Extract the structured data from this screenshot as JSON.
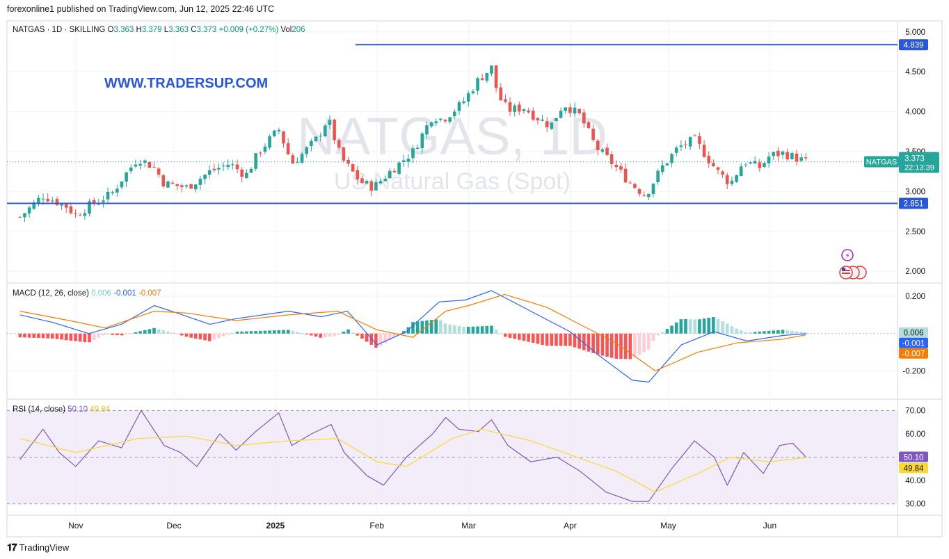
{
  "header": "forexonline1 published on TradingView.com, Jun 12, 2025 22:46 UTC",
  "footer": {
    "brand": "TradingView"
  },
  "watermark": {
    "domain": "WWW.TRADERSUP.COM",
    "symbol": "NATGAS, 1D",
    "name": "US Natural Gas (Spot)"
  },
  "chart_data": [
    {
      "type": "candlestick",
      "title": "NATGAS · 1D · SKILLING",
      "ohlc_legend": {
        "O": "3.363",
        "H": "3.379",
        "L": "3.363",
        "C": "3.373",
        "change": "+0.009 (+0.27%)",
        "Vol": "206"
      },
      "y_ticks": [
        "5.000",
        "4.500",
        "4.000",
        "3.500",
        "3.000",
        "2.500",
        "2.000"
      ],
      "ylim": [
        1.88,
        5.12
      ],
      "x_ticks": [
        "Nov",
        "Dec",
        "2025",
        "Feb",
        "Mar",
        "Apr",
        "May",
        "Jun"
      ],
      "horizontal_lines": [
        {
          "value": 4.839,
          "label": "4.839",
          "color": "#2a56d8"
        },
        {
          "value": 2.851,
          "label": "2.851",
          "color": "#2a56d8"
        }
      ],
      "last_price": {
        "symbol": "NATGAS",
        "value": "3.373",
        "countdown": "22:13:39",
        "level": 3.373
      },
      "close_path": [
        [
          "2024-10-15",
          2.68
        ],
        [
          "2024-10-22",
          2.95
        ],
        [
          "2024-10-29",
          2.82
        ],
        [
          "2024-11-01",
          2.7
        ],
        [
          "2024-11-05",
          2.82
        ],
        [
          "2024-11-12",
          2.97
        ],
        [
          "2024-11-15",
          3.15
        ],
        [
          "2024-11-20",
          3.42
        ],
        [
          "2024-11-25",
          3.3
        ],
        [
          "2024-11-28",
          3.1
        ],
        [
          "2024-12-05",
          3.05
        ],
        [
          "2024-12-12",
          3.25
        ],
        [
          "2024-12-18",
          3.35
        ],
        [
          "2024-12-23",
          3.2
        ],
        [
          "2024-12-27",
          3.5
        ],
        [
          "2025-01-02",
          3.78
        ],
        [
          "2025-01-06",
          3.35
        ],
        [
          "2025-01-10",
          3.5
        ],
        [
          "2025-01-14",
          3.68
        ],
        [
          "2025-01-17",
          3.92
        ],
        [
          "2025-01-21",
          3.42
        ],
        [
          "2025-01-27",
          3.12
        ],
        [
          "2025-01-31",
          3.05
        ],
        [
          "2025-02-05",
          3.25
        ],
        [
          "2025-02-12",
          3.5
        ],
        [
          "2025-02-18",
          3.95
        ],
        [
          "2025-02-21",
          3.9
        ],
        [
          "2025-02-27",
          4.1
        ],
        [
          "2025-03-04",
          4.4
        ],
        [
          "2025-03-08",
          4.55
        ],
        [
          "2025-03-10",
          4.2
        ],
        [
          "2025-03-13",
          4.02
        ],
        [
          "2025-03-18",
          4.05
        ],
        [
          "2025-03-21",
          3.95
        ],
        [
          "2025-03-26",
          3.82
        ],
        [
          "2025-03-30",
          4.1
        ],
        [
          "2025-04-04",
          3.95
        ],
        [
          "2025-04-09",
          3.55
        ],
        [
          "2025-04-14",
          3.35
        ],
        [
          "2025-04-19",
          3.12
        ],
        [
          "2025-04-24",
          2.95
        ],
        [
          "2025-04-29",
          3.3
        ],
        [
          "2025-05-04",
          3.55
        ],
        [
          "2025-05-09",
          3.65
        ],
        [
          "2025-05-13",
          3.42
        ],
        [
          "2025-05-16",
          3.25
        ],
        [
          "2025-05-20",
          3.1
        ],
        [
          "2025-05-24",
          3.38
        ],
        [
          "2025-05-29",
          3.3
        ],
        [
          "2025-06-01",
          3.45
        ],
        [
          "2025-06-05",
          3.48
        ],
        [
          "2025-06-09",
          3.42
        ],
        [
          "2025-06-12",
          3.373
        ]
      ]
    },
    {
      "type": "line",
      "title": "MACD (12, 26, close)",
      "legend_values": {
        "histogram": "0.006",
        "macd": "-0.001",
        "signal": "-0.007"
      },
      "y_ticks": [
        "0.200",
        "-0.200"
      ],
      "ylim": [
        -0.34,
        0.26
      ],
      "series": [
        {
          "color": "#2962ff",
          "values": [
            [
              "2024-10-15",
              0.1
            ],
            [
              "2024-10-25",
              0.06
            ],
            [
              "2024-11-05",
              0.0
            ],
            [
              "2024-11-15",
              0.05
            ],
            [
              "2024-11-25",
              0.15
            ],
            [
              "2024-12-02",
              0.11
            ],
            [
              "2024-12-12",
              0.05
            ],
            [
              "2024-12-20",
              0.08
            ],
            [
              "2025-01-05",
              0.12
            ],
            [
              "2025-01-15",
              0.09
            ],
            [
              "2025-01-23",
              0.12
            ],
            [
              "2025-02-01",
              -0.06
            ],
            [
              "2025-02-10",
              0.01
            ],
            [
              "2025-02-20",
              0.17
            ],
            [
              "2025-02-28",
              0.18
            ],
            [
              "2025-03-08",
              0.23
            ],
            [
              "2025-03-20",
              0.12
            ],
            [
              "2025-04-01",
              0.01
            ],
            [
              "2025-04-10",
              -0.12
            ],
            [
              "2025-04-20",
              -0.25
            ],
            [
              "2025-04-25",
              -0.26
            ],
            [
              "2025-05-05",
              -0.06
            ],
            [
              "2025-05-15",
              0.01
            ],
            [
              "2025-05-25",
              -0.04
            ],
            [
              "2025-06-05",
              -0.01
            ],
            [
              "2025-06-12",
              -0.001
            ]
          ]
        },
        {
          "color": "#f57c00",
          "values": [
            [
              "2024-10-15",
              0.12
            ],
            [
              "2024-10-30",
              0.07
            ],
            [
              "2024-11-10",
              0.03
            ],
            [
              "2024-11-25",
              0.12
            ],
            [
              "2024-12-05",
              0.11
            ],
            [
              "2024-12-20",
              0.07
            ],
            [
              "2025-01-05",
              0.1
            ],
            [
              "2025-01-20",
              0.12
            ],
            [
              "2025-02-01",
              0.02
            ],
            [
              "2025-02-12",
              -0.02
            ],
            [
              "2025-02-22",
              0.12
            ],
            [
              "2025-03-01",
              0.15
            ],
            [
              "2025-03-12",
              0.21
            ],
            [
              "2025-03-25",
              0.14
            ],
            [
              "2025-04-05",
              0.04
            ],
            [
              "2025-04-15",
              -0.05
            ],
            [
              "2025-04-27",
              -0.2
            ],
            [
              "2025-05-10",
              -0.1
            ],
            [
              "2025-05-22",
              -0.05
            ],
            [
              "2025-06-05",
              -0.03
            ],
            [
              "2025-06-12",
              -0.007
            ]
          ]
        }
      ]
    },
    {
      "type": "line",
      "title": "RSI (14, close)",
      "legend_values": {
        "rsi": "50.10",
        "ma": "49.84"
      },
      "y_ticks": [
        "70.00",
        "60.00",
        "50.00",
        "40.00",
        "30.00"
      ],
      "ylim": [
        26,
        74
      ],
      "band": [
        30,
        70
      ],
      "series": [
        {
          "color": "#7e57c2",
          "values": [
            [
              "2024-10-15",
              49
            ],
            [
              "2024-10-22",
              62
            ],
            [
              "2024-10-27",
              52
            ],
            [
              "2024-11-01",
              46
            ],
            [
              "2024-11-08",
              57
            ],
            [
              "2024-11-15",
              54
            ],
            [
              "2024-11-21",
              70
            ],
            [
              "2024-11-28",
              55
            ],
            [
              "2024-12-03",
              52
            ],
            [
              "2024-12-08",
              46
            ],
            [
              "2024-12-15",
              60
            ],
            [
              "2024-12-20",
              53
            ],
            [
              "2024-12-26",
              61
            ],
            [
              "2025-01-02",
              69
            ],
            [
              "2025-01-06",
              55
            ],
            [
              "2025-01-12",
              60
            ],
            [
              "2025-01-18",
              64
            ],
            [
              "2025-01-22",
              52
            ],
            [
              "2025-01-29",
              42
            ],
            [
              "2025-02-03",
              38
            ],
            [
              "2025-02-10",
              50
            ],
            [
              "2025-02-18",
              60
            ],
            [
              "2025-02-22",
              67
            ],
            [
              "2025-02-26",
              62
            ],
            [
              "2025-03-04",
              61
            ],
            [
              "2025-03-08",
              66
            ],
            [
              "2025-03-13",
              55
            ],
            [
              "2025-03-20",
              48
            ],
            [
              "2025-03-28",
              50
            ],
            [
              "2025-04-04",
              44
            ],
            [
              "2025-04-12",
              35
            ],
            [
              "2025-04-20",
              31
            ],
            [
              "2025-04-25",
              31
            ],
            [
              "2025-05-02",
              45
            ],
            [
              "2025-05-09",
              57
            ],
            [
              "2025-05-15",
              50
            ],
            [
              "2025-05-19",
              38
            ],
            [
              "2025-05-24",
              52
            ],
            [
              "2025-05-30",
              43
            ],
            [
              "2025-06-04",
              55
            ],
            [
              "2025-06-08",
              56
            ],
            [
              "2025-06-12",
              50.1
            ]
          ]
        },
        {
          "color": "#fdd835",
          "values": [
            [
              "2024-10-15",
              58
            ],
            [
              "2024-11-01",
              52
            ],
            [
              "2024-11-20",
              58
            ],
            [
              "2024-12-05",
              59
            ],
            [
              "2024-12-20",
              55
            ],
            [
              "2025-01-05",
              57
            ],
            [
              "2025-01-20",
              58
            ],
            [
              "2025-02-01",
              48
            ],
            [
              "2025-02-10",
              46
            ],
            [
              "2025-02-24",
              58
            ],
            [
              "2025-03-05",
              62
            ],
            [
              "2025-03-20",
              57
            ],
            [
              "2025-04-01",
              51
            ],
            [
              "2025-04-15",
              44
            ],
            [
              "2025-04-27",
              35
            ],
            [
              "2025-05-10",
              43
            ],
            [
              "2025-05-20",
              50
            ],
            [
              "2025-06-01",
              48
            ],
            [
              "2025-06-12",
              49.84
            ]
          ]
        }
      ]
    }
  ]
}
